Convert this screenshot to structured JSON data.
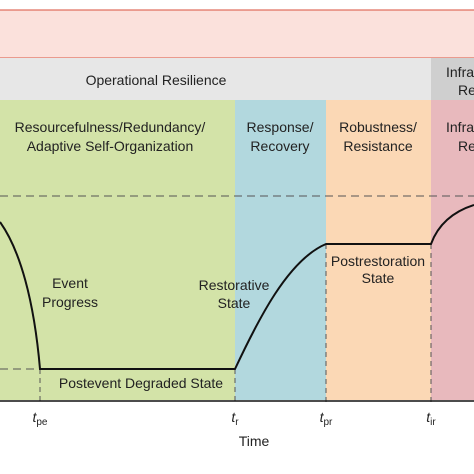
{
  "header": {
    "operational_label": "Operational Resilience",
    "infrastructure_label_line1": "Infra",
    "infrastructure_label_line2": "Re"
  },
  "phases": [
    {
      "line1": "Resourcefulness/Redundancy/",
      "line2": "Adaptive Self-Organization",
      "color": "#d3e3a8"
    },
    {
      "line1": "Response/",
      "line2": "Recovery",
      "color": "#b2d8de"
    },
    {
      "line1": "Robustness/",
      "line2": "Resistance",
      "color": "#fbd8b5"
    },
    {
      "line1": "Infra",
      "line2": "Re",
      "color": "#e8b9bd"
    }
  ],
  "curve_labels": {
    "event_line1": "Event",
    "event_line2": "Progress",
    "restorative_line1": "Restorative",
    "restorative_line2": "State",
    "postrestoration_line1": "Postrestoration",
    "postrestoration_line2": "State",
    "degraded": "Postevent Degraded State"
  },
  "axis": {
    "title": "Time",
    "ticks": [
      {
        "main": "t",
        "sub": "pe"
      },
      {
        "main": "t",
        "sub": "r"
      },
      {
        "main": "t",
        "sub": "pr"
      },
      {
        "main": "t",
        "sub": "ir"
      }
    ]
  },
  "colors": {
    "top_band": "#fbe1dc",
    "border": "#e07060",
    "header_gray": "#e7e7e7",
    "header_dark": "#cfcfcf"
  }
}
